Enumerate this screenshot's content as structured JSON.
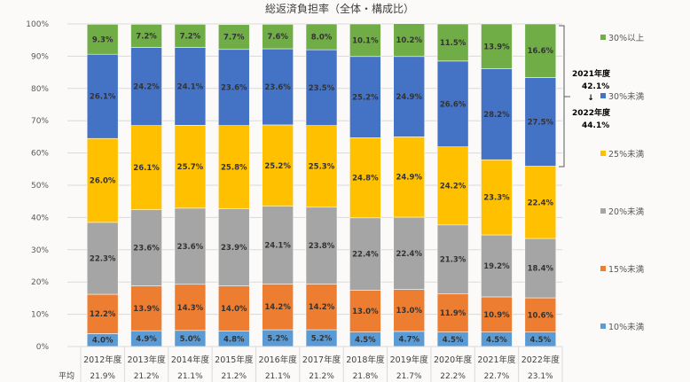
{
  "chart_data": {
    "type": "bar",
    "stacked": true,
    "title": "総返済負担率（全体・構成比）",
    "categories": [
      "2012年度",
      "2013年度",
      "2014年度",
      "2015年度",
      "2016年度",
      "2017年度",
      "2018年度",
      "2019年度",
      "2020年度",
      "2021年度",
      "2022年度"
    ],
    "ylim": [
      0,
      100
    ],
    "yticks": [
      "0%",
      "10%",
      "20%",
      "30%",
      "40%",
      "50%",
      "60%",
      "70%",
      "80%",
      "90%",
      "100%"
    ],
    "grid": true,
    "legend_position": "right",
    "series": [
      {
        "name": "10%未満",
        "color": "#5b9bd5",
        "values": [
          4.0,
          4.9,
          5.0,
          4.8,
          5.2,
          5.2,
          4.5,
          4.7,
          4.5,
          4.5,
          4.5
        ],
        "labels": [
          "4.0%",
          "4.9%",
          "5.0%",
          "4.8%",
          "5.2%",
          "5.2%",
          "4.5%",
          "4.7%",
          "4.5%",
          "4.5%",
          "4.5%"
        ]
      },
      {
        "name": "15%未満",
        "color": "#ed7d31",
        "values": [
          12.2,
          13.9,
          14.3,
          14.0,
          14.2,
          14.2,
          13.0,
          13.0,
          11.9,
          10.9,
          10.6
        ],
        "labels": [
          "12.2%",
          "13.9%",
          "14.3%",
          "14.0%",
          "14.2%",
          "14.2%",
          "13.0%",
          "13.0%",
          "11.9%",
          "10.9%",
          "10.6%"
        ]
      },
      {
        "name": "20%未満",
        "color": "#a5a5a5",
        "values": [
          22.3,
          23.6,
          23.6,
          23.9,
          24.1,
          23.8,
          22.4,
          22.4,
          21.3,
          19.2,
          18.4
        ],
        "labels": [
          "22.3%",
          "23.6%",
          "23.6%",
          "23.9%",
          "24.1%",
          "23.8%",
          "22.4%",
          "22.4%",
          "21.3%",
          "19.2%",
          "18.4%"
        ]
      },
      {
        "name": "25%未満",
        "color": "#ffc000",
        "values": [
          26.0,
          26.1,
          25.7,
          25.8,
          25.2,
          25.3,
          24.8,
          24.9,
          24.2,
          23.3,
          22.4
        ],
        "labels": [
          "26.0%",
          "26.1%",
          "25.7%",
          "25.8%",
          "25.2%",
          "25.3%",
          "24.8%",
          "24.9%",
          "24.2%",
          "23.3%",
          "22.4%"
        ]
      },
      {
        "name": "30%未満",
        "color": "#4472c4",
        "values": [
          26.1,
          24.2,
          24.1,
          23.6,
          23.6,
          23.5,
          25.2,
          24.9,
          26.6,
          28.2,
          27.5
        ],
        "labels": [
          "26.1%",
          "24.2%",
          "24.1%",
          "23.6%",
          "23.6%",
          "23.5%",
          "25.2%",
          "24.9%",
          "26.6%",
          "28.2%",
          "27.5%"
        ]
      },
      {
        "name": "30%以上",
        "color": "#70ad47",
        "values": [
          9.3,
          7.2,
          7.2,
          7.7,
          7.6,
          8.0,
          10.1,
          10.2,
          11.5,
          13.9,
          16.6
        ],
        "labels": [
          "9.3%",
          "7.2%",
          "7.2%",
          "7.7%",
          "7.6%",
          "8.0%",
          "10.1%",
          "10.2%",
          "11.5%",
          "13.9%",
          "16.6%"
        ]
      }
    ],
    "average_row": {
      "label": "平均",
      "values": [
        "21.9%",
        "21.2%",
        "21.1%",
        "21.2%",
        "21.1%",
        "21.2%",
        "21.8%",
        "21.7%",
        "22.2%",
        "22.7%",
        "23.1%"
      ]
    },
    "annotation": {
      "from_label": "2021年度",
      "from_value": "42.1%",
      "arrow": "↓",
      "to_label": "2022年度",
      "to_value": "44.1%"
    }
  }
}
